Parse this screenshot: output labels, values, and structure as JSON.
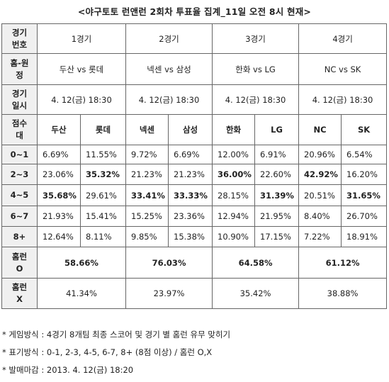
{
  "title": "<야구토토 런앤런 2회차 투표율 집계_11일 오전 8시 현재>",
  "labels": {
    "game_no": [
      "경기",
      "번호"
    ],
    "home_away": [
      "홈-원",
      "정"
    ],
    "datetime": [
      "경기",
      "일시"
    ],
    "score": [
      "점수",
      "대"
    ],
    "hr_o": [
      "홈런",
      "O"
    ],
    "hr_x": [
      "홈런",
      "X"
    ]
  },
  "games": [
    {
      "no": "1경기",
      "matchup": "두산 vs 롯데",
      "datetime": "4. 12(금) 18:30",
      "home": "두산",
      "away": "롯데",
      "hr_o": "58.66%",
      "hr_x": "41.34%"
    },
    {
      "no": "2경기",
      "matchup": "넥센 vs 삼성",
      "datetime": "4. 12(금) 18:30",
      "home": "넥센",
      "away": "삼성",
      "hr_o": "76.03%",
      "hr_x": "23.97%"
    },
    {
      "no": "3경기",
      "matchup": "한화 vs LG",
      "datetime": "4. 12(금) 18:30",
      "home": "한화",
      "away": "LG",
      "hr_o": "64.58%",
      "hr_x": "35.42%"
    },
    {
      "no": "4경기",
      "matchup": "NC vs SK",
      "datetime": "4. 12(금) 18:30",
      "home": "NC",
      "away": "SK",
      "hr_o": "61.12%",
      "hr_x": "38.88%"
    }
  ],
  "score_rows": [
    {
      "range": "0~1",
      "values": [
        "6.69%",
        "11.55%",
        "9.72%",
        "6.69%",
        "12.00%",
        "6.91%",
        "20.96%",
        "6.54%"
      ],
      "bold": [
        false,
        false,
        false,
        false,
        false,
        false,
        false,
        false
      ]
    },
    {
      "range": "2~3",
      "values": [
        "23.06%",
        "35.32%",
        "21.23%",
        "21.23%",
        "36.00%",
        "22.60%",
        "42.92%",
        "16.20%"
      ],
      "bold": [
        false,
        true,
        false,
        false,
        true,
        false,
        true,
        false
      ]
    },
    {
      "range": "4~5",
      "values": [
        "35.68%",
        "29.61%",
        "33.41%",
        "33.33%",
        "28.15%",
        "31.39%",
        "20.51%",
        "31.65%"
      ],
      "bold": [
        true,
        false,
        true,
        true,
        false,
        true,
        false,
        true
      ]
    },
    {
      "range": "6~7",
      "values": [
        "21.93%",
        "15.41%",
        "15.25%",
        "23.36%",
        "12.94%",
        "21.95%",
        "8.40%",
        "26.70%"
      ],
      "bold": [
        false,
        false,
        false,
        false,
        false,
        false,
        false,
        false
      ]
    },
    {
      "range": "8+",
      "values": [
        "12.64%",
        "8.11%",
        "9.85%",
        "15.38%",
        "10.90%",
        "17.15%",
        "7.22%",
        "18.91%"
      ],
      "bold": [
        false,
        false,
        false,
        false,
        false,
        false,
        false,
        false
      ]
    }
  ],
  "notes": [
    "* 게임방식 : 4경기 8개팀 최종 스코어 및 경기 별 홈런 유무 맞히기",
    "* 표기방식 : 0-1, 2-3, 4-5, 6-7, 8+ (8점 이상) / 홈런 O,X",
    "* 발매마감 : 2013. 4. 12(금) 18:20"
  ]
}
